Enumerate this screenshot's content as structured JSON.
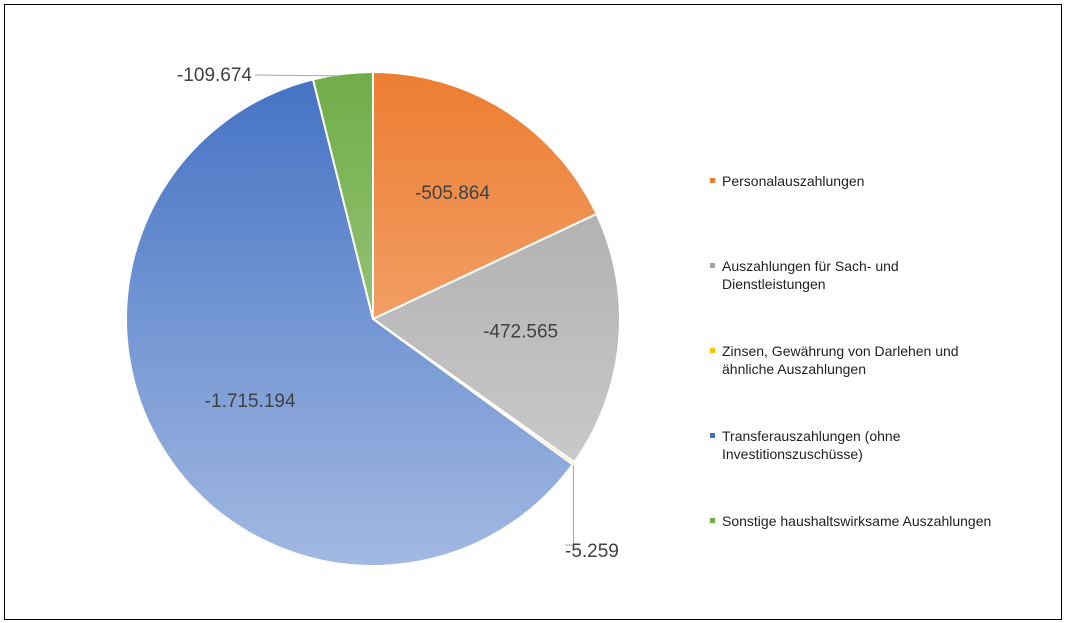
{
  "chart_data": {
    "type": "pie",
    "categories": [
      "Personalauszahlungen",
      "Auszahlungen für Sach- und Dienstleistungen",
      "Zinsen, Gewährung von Darlehen und ähnliche Auszahlungen",
      "Transferauszahlungen (ohne Investitionszuschüsse)",
      "Sonstige haushaltswirksame Auszahlungen"
    ],
    "values": [
      -505864,
      -472565,
      -5259,
      -1715194,
      -109674
    ],
    "value_labels": [
      "-505.864",
      "-472.565",
      "-5.259",
      "-1.715.194",
      "-109.674"
    ],
    "colors": [
      "#ed7d31",
      "#a5a5a5",
      "#ffc000",
      "#4472c4",
      "#70ad47"
    ],
    "legend": "right"
  }
}
